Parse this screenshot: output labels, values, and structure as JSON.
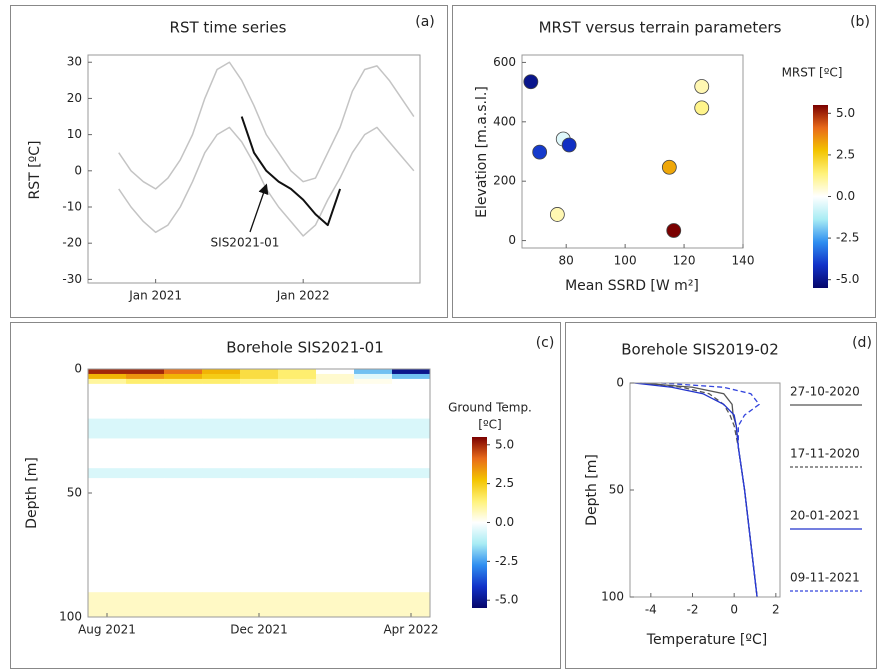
{
  "chart_data": [
    {
      "type": "line",
      "title": "RST time series",
      "panel_label": "(a)",
      "y_label": "RST [ºC]",
      "categories": [
        null,
        null,
        null,
        null,
        null,
        "Jan 2021",
        null,
        null,
        null,
        null,
        null,
        null,
        null,
        null,
        null,
        null,
        null,
        "Jan 2022",
        null,
        null,
        null,
        null,
        null,
        null,
        null,
        null,
        null
      ],
      "ylim": [
        -31,
        32
      ],
      "yticks": [
        -30,
        -20,
        -10,
        0,
        10,
        20,
        30
      ],
      "annotation": "SIS2021-01",
      "series": [
        {
          "color": "#c4c4c4",
          "values": [
            null,
            null,
            5,
            0,
            -3,
            -5,
            -2,
            3,
            10,
            20,
            28,
            30,
            25,
            18,
            10,
            5,
            0,
            -3,
            -2,
            5,
            12,
            22,
            28,
            29,
            25,
            20,
            15
          ]
        },
        {
          "color": "#c4c4c4",
          "values": [
            null,
            null,
            -5,
            -10,
            -14,
            -17,
            -15,
            -10,
            -3,
            5,
            10,
            12,
            8,
            2,
            -5,
            -10,
            -14,
            -18,
            -15,
            -8,
            -2,
            5,
            10,
            12,
            8,
            4,
            0
          ]
        },
        {
          "color": "#111111",
          "values": [
            null,
            null,
            null,
            null,
            null,
            null,
            null,
            null,
            null,
            null,
            null,
            null,
            15,
            5,
            0,
            -3,
            -5,
            -8,
            -12,
            -15,
            -5,
            null,
            null,
            null,
            null,
            null,
            null
          ]
        }
      ]
    },
    {
      "type": "scatter",
      "title": "MRST versus terrain parameters",
      "panel_label": "(b)",
      "x_label": "Mean SSRD [W m²]",
      "y_label": "Elevation [m.a.s.l.]",
      "xlim": [
        65,
        140
      ],
      "xticks": [
        80,
        100,
        120,
        140
      ],
      "ylim": [
        -25,
        625
      ],
      "yticks": [
        0,
        200,
        400,
        600
      ],
      "x": [
        68,
        71,
        79,
        81,
        77,
        115,
        116.5,
        126,
        126
      ],
      "y": [
        535,
        298,
        342,
        322,
        88,
        247,
        34,
        519,
        447
      ],
      "c": [
        -5,
        -4,
        -0.5,
        -4.2,
        0.8,
        3.2,
        5.5,
        0.8,
        1.2
      ],
      "colorbar_title": "MRST [ºC]",
      "clim": [
        -5.5,
        5.5
      ],
      "colormap": [
        "#06066a",
        "#1232c8",
        "#2f8ef0",
        "#a8ecf4",
        "#ffffff",
        "#fff27a",
        "#f3c400",
        "#e86a1a",
        "#7a0000"
      ],
      "cticks": [
        {
          "value": -5,
          "label": "-5.0"
        },
        {
          "value": -2.5,
          "label": "-2.5"
        },
        {
          "value": 0,
          "label": "0.0"
        },
        {
          "value": 2.5,
          "label": "2.5"
        },
        {
          "value": 5,
          "label": "5.0"
        }
      ]
    },
    {
      "type": "heatmap",
      "title": "Borehole SIS2021-01",
      "panel_label": "(c)",
      "y_label": "Depth [m]",
      "categories": [
        "Aug 2021",
        null,
        null,
        null,
        "Dec 2021",
        null,
        null,
        null,
        "Apr 2022"
      ],
      "y_bins": [
        0,
        2,
        4,
        6,
        20,
        28,
        40,
        44,
        90,
        100
      ],
      "ylim": [
        0,
        100
      ],
      "yticks": [
        0,
        50,
        100
      ],
      "y_inverted": true,
      "values": [
        [
          5,
          5,
          4,
          3,
          2,
          1.5,
          0,
          -2,
          -5
        ],
        [
          3,
          3.5,
          3,
          2.5,
          2,
          1.5,
          0.5,
          -0.5,
          -2
        ],
        [
          1,
          1.5,
          1.5,
          1.5,
          1.2,
          1,
          0.5,
          0.2,
          0
        ],
        [
          0,
          0,
          0,
          0,
          0,
          0,
          0,
          0,
          0
        ],
        [
          -0.6,
          -0.6,
          -0.6,
          -0.6,
          -0.6,
          -0.6,
          -0.6,
          -0.6,
          -0.6
        ],
        [
          0,
          0,
          0,
          0,
          0,
          0,
          0,
          0,
          0
        ],
        [
          -0.6,
          -0.6,
          -0.6,
          -0.6,
          -0.6,
          -0.6,
          -0.6,
          -0.6,
          -0.6
        ],
        [
          0,
          0,
          0,
          0,
          0,
          0,
          0,
          0,
          0
        ],
        [
          0.6,
          0.6,
          0.6,
          0.6,
          0.6,
          0.6,
          0.6,
          0.6,
          0.6
        ]
      ],
      "colorbar_title": [
        "Ground Temp.",
        "[ºC]"
      ],
      "clim": [
        -5.5,
        5.5
      ],
      "colormap": [
        "#06066a",
        "#1232c8",
        "#2f8ef0",
        "#a8ecf4",
        "#ffffff",
        "#fff27a",
        "#f3c400",
        "#e86a1a",
        "#7a0000"
      ],
      "cticks": [
        {
          "value": -5,
          "label": "-5.0"
        },
        {
          "value": -2.5,
          "label": "-2.5"
        },
        {
          "value": 0,
          "label": "0.0"
        },
        {
          "value": 2.5,
          "label": "2.5"
        },
        {
          "value": 5,
          "label": "5.0"
        }
      ]
    },
    {
      "type": "profile",
      "title": "Borehole SIS2019-02",
      "panel_label": "(d)",
      "x_label": "Temperature [ºC]",
      "y_label": "Depth [m]",
      "xlim": [
        -5,
        2.2
      ],
      "xticks": [
        -4,
        -2,
        0,
        2
      ],
      "ylim": [
        0,
        100
      ],
      "yticks": [
        0,
        50,
        100
      ],
      "y_inverted": true,
      "legend": "right",
      "depth": [
        0,
        2,
        5,
        10,
        15,
        20,
        30,
        50,
        75,
        100
      ],
      "series": [
        {
          "name": "27-10-2020",
          "color": "#555555",
          "dashed": false,
          "values": [
            -4.5,
            -2,
            -0.5,
            -0.1,
            -0.05,
            0.1,
            0.2,
            0.5,
            0.8,
            1.1
          ]
        },
        {
          "name": "17-11-2020",
          "color": "#555555",
          "dashed": true,
          "values": [
            -4.3,
            -2.5,
            -1.2,
            -0.5,
            -0.2,
            0,
            0.2,
            0.5,
            0.8,
            1.1
          ]
        },
        {
          "name": "20-01-2021",
          "color": "#2233cc",
          "dashed": false,
          "values": [
            -4.8,
            -3,
            -1.5,
            -0.5,
            0,
            0.1,
            0.2,
            0.5,
            0.8,
            1.1
          ]
        },
        {
          "name": "09-11-2021",
          "color": "#3344dd",
          "dashed": true,
          "values": [
            -3.5,
            -0.5,
            0.8,
            1.2,
            0.5,
            0.2,
            0.2,
            0.5,
            0.8,
            1.1
          ]
        }
      ]
    }
  ]
}
